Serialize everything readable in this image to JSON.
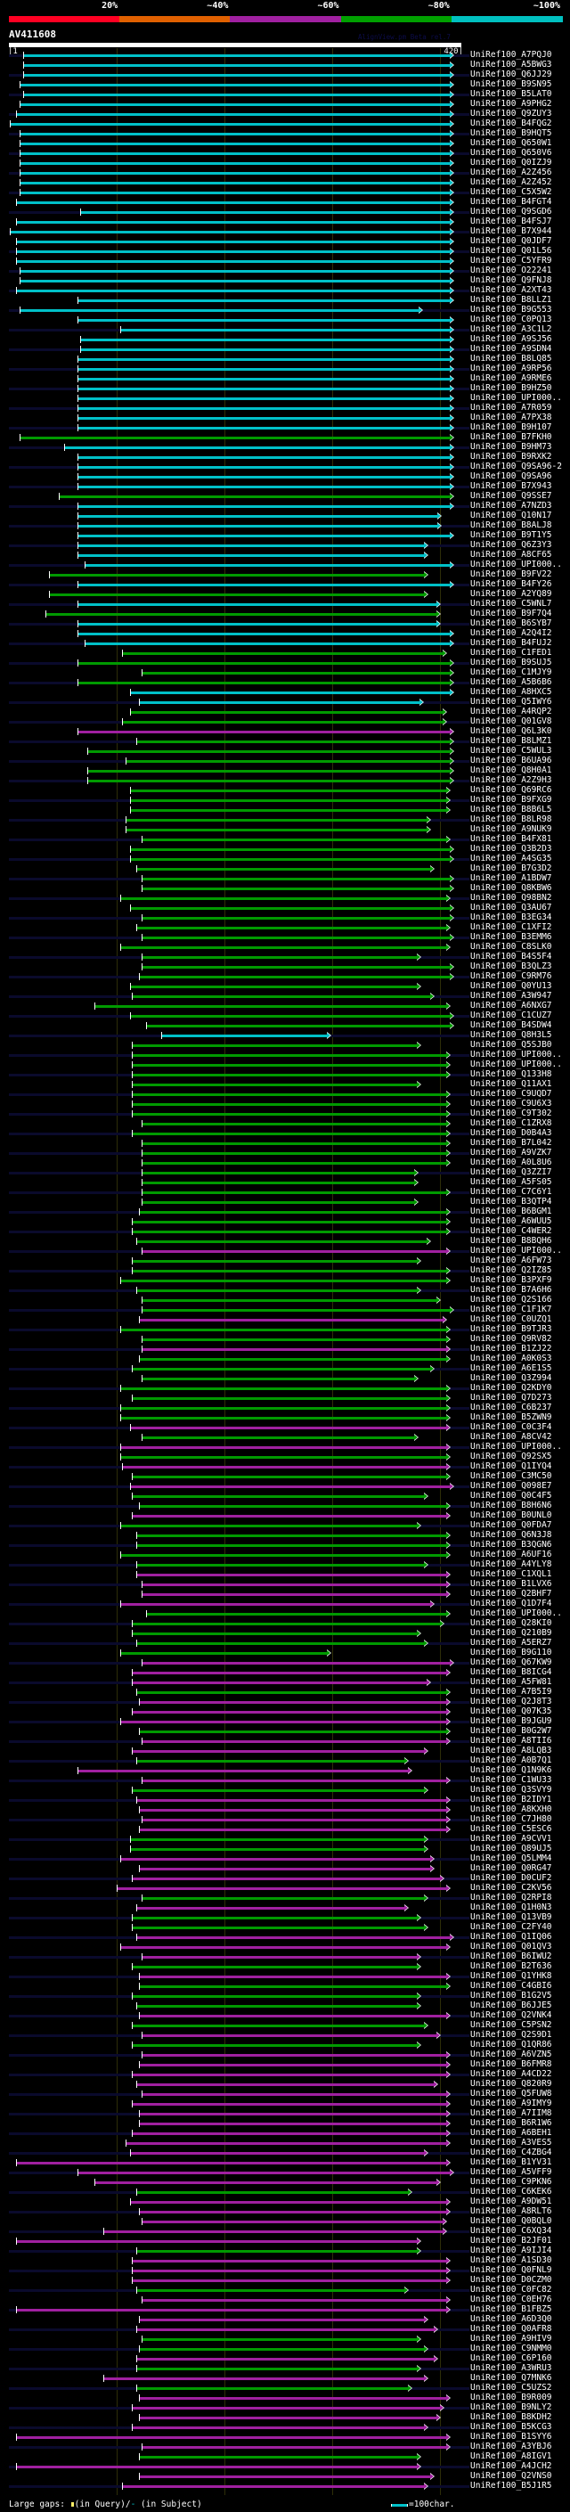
{
  "scale": {
    "labels": [
      "20%",
      "~40%",
      "~60%",
      "~80%",
      "~100%"
    ],
    "colors": [
      "#ff0022",
      "#e06000",
      "#a020a0",
      "#00a000",
      "#00c0c0"
    ]
  },
  "header": {
    "query": "AV411608",
    "version": "AlignView.pm Beta rel.7",
    "start_tick": "|1",
    "end_tick": "420|"
  },
  "query_length": 420,
  "bar_colors": {
    "c": "#00c0c8",
    "g": "#009a00",
    "m": "#a020a0"
  },
  "rows": [
    [
      "UniRef100_A7PQJ0",
      "c",
      13,
      413
    ],
    [
      "UniRef100_A5BWG3",
      "c",
      13,
      413
    ],
    [
      "UniRef100_Q6JJ29",
      "c",
      13,
      413
    ],
    [
      "UniRef100_B9SN95",
      "c",
      10,
      413
    ],
    [
      "UniRef100_B5LAT0",
      "c",
      13,
      413
    ],
    [
      "UniRef100_A9PHG2",
      "c",
      10,
      413
    ],
    [
      "UniRef100_Q9ZUY3",
      "c",
      7,
      413
    ],
    [
      "UniRef100_B4FQG2",
      "c",
      1,
      413
    ],
    [
      "UniRef100_B9HQT5",
      "c",
      10,
      413
    ],
    [
      "UniRef100_Q650W1",
      "c",
      10,
      413
    ],
    [
      "UniRef100_Q650V6",
      "c",
      10,
      413
    ],
    [
      "UniRef100_Q0IZJ9",
      "c",
      10,
      413
    ],
    [
      "UniRef100_A2Z456",
      "c",
      10,
      413
    ],
    [
      "UniRef100_A2Z452",
      "c",
      10,
      413
    ],
    [
      "UniRef100_C5X5W2",
      "c",
      10,
      413
    ],
    [
      "UniRef100_B4FGT4",
      "c",
      7,
      413
    ],
    [
      "UniRef100_Q9SGD6",
      "c",
      66,
      413
    ],
    [
      "UniRef100_B4FSJ7",
      "c",
      7,
      413
    ],
    [
      "UniRef100_B7X944",
      "c",
      1,
      413
    ],
    [
      "UniRef100_Q0JDF7",
      "c",
      7,
      413
    ],
    [
      "UniRef100_Q01L56",
      "c",
      7,
      413
    ],
    [
      "UniRef100_C5YFR9",
      "c",
      7,
      413
    ],
    [
      "UniRef100_O22241",
      "c",
      10,
      413
    ],
    [
      "UniRef100_Q9FNJ8",
      "c",
      10,
      413
    ],
    [
      "UniRef100_A2XT43",
      "c",
      7,
      413
    ],
    [
      "UniRef100_B8LLZ1",
      "c",
      64,
      413
    ],
    [
      "UniRef100_B9G553",
      "c",
      10,
      384
    ],
    [
      "UniRef100_C0PQ13",
      "c",
      64,
      413
    ],
    [
      "UniRef100_A3C1L2",
      "c",
      103,
      413
    ],
    [
      "UniRef100_A9SJ56",
      "c",
      66,
      413
    ],
    [
      "UniRef100_A9SDN4",
      "c",
      66,
      413
    ],
    [
      "UniRef100_B8LQ85",
      "c",
      64,
      413
    ],
    [
      "UniRef100_A9RP56",
      "c",
      64,
      413
    ],
    [
      "UniRef100_A9RME6",
      "c",
      64,
      413
    ],
    [
      "UniRef100_B9HZ50",
      "c",
      64,
      413
    ],
    [
      "UniRef100_UPI000..",
      "c",
      64,
      413
    ],
    [
      "UniRef100_A7R059",
      "c",
      64,
      413
    ],
    [
      "UniRef100_A7PX38",
      "c",
      64,
      413
    ],
    [
      "UniRef100_B9H107",
      "c",
      64,
      413
    ],
    [
      "UniRef100_B7FKH0",
      "g",
      10,
      413
    ],
    [
      "UniRef100_B9HM73",
      "c",
      51,
      413
    ],
    [
      "UniRef100_B9RXK2",
      "c",
      64,
      413
    ],
    [
      "UniRef100_Q9SA96-2",
      "c",
      64,
      413
    ],
    [
      "UniRef100_Q9SA96",
      "c",
      64,
      413
    ],
    [
      "UniRef100_B7X943",
      "c",
      64,
      413
    ],
    [
      "UniRef100_Q9SSE7",
      "g",
      46,
      413
    ],
    [
      "UniRef100_A7NZD3",
      "c",
      64,
      413
    ],
    [
      "UniRef100_Q10N17",
      "c",
      64,
      402
    ],
    [
      "UniRef100_B8ALJ8",
      "c",
      64,
      402
    ],
    [
      "UniRef100_B9T1Y5",
      "c",
      64,
      413
    ],
    [
      "UniRef100_Q6Z3Y3",
      "c",
      64,
      389
    ],
    [
      "UniRef100_A8CF65",
      "c",
      64,
      389
    ],
    [
      "UniRef100_UPI000..",
      "c",
      70,
      413
    ],
    [
      "UniRef100_B9FV22",
      "g",
      37,
      389
    ],
    [
      "UniRef100_B4FY26",
      "c",
      64,
      413
    ],
    [
      "UniRef100_A2YQ89",
      "g",
      37,
      389
    ],
    [
      "UniRef100_C5WNL7",
      "c",
      64,
      401
    ],
    [
      "UniRef100_B9F7Q4",
      "g",
      34,
      401
    ],
    [
      "UniRef100_B6SYB7",
      "c",
      64,
      401
    ],
    [
      "UniRef100_A2Q4I2",
      "c",
      64,
      413
    ],
    [
      "UniRef100_B4FUJ2",
      "c",
      70,
      413
    ],
    [
      "UniRef100_C1FED1",
      "g",
      105,
      407
    ],
    [
      "UniRef100_B9SUJ5",
      "g",
      64,
      413
    ],
    [
      "UniRef100_C1MJY9",
      "g",
      123,
      413
    ],
    [
      "UniRef100_A5B6B6",
      "g",
      64,
      413
    ],
    [
      "UniRef100_A8HXC5",
      "c",
      112,
      413
    ],
    [
      "UniRef100_Q5IWY6",
      "c",
      121,
      385
    ],
    [
      "UniRef100_A4RQP2",
      "g",
      112,
      407
    ],
    [
      "UniRef100_Q01GV8",
      "g",
      105,
      407
    ],
    [
      "UniRef100_Q6L3K0",
      "m",
      64,
      413
    ],
    [
      "UniRef100_B8LMZ1",
      "g",
      118,
      413
    ],
    [
      "UniRef100_C5WUL3",
      "g",
      73,
      413
    ],
    [
      "UniRef100_B6UA96",
      "g",
      108,
      413
    ],
    [
      "UniRef100_Q8H0A1",
      "g",
      73,
      413
    ],
    [
      "UniRef100_A2Z9H3",
      "g",
      73,
      413
    ],
    [
      "UniRef100_Q69RC6",
      "g",
      112,
      410
    ],
    [
      "UniRef100_B9FXG9",
      "g",
      112,
      410
    ],
    [
      "UniRef100_B8B6L5",
      "g",
      112,
      410
    ],
    [
      "UniRef100_B8LR98",
      "g",
      108,
      392
    ],
    [
      "UniRef100_A9NUK9",
      "g",
      108,
      392
    ],
    [
      "UniRef100_B4FX81",
      "g",
      123,
      410
    ],
    [
      "UniRef100_Q3B2D3",
      "g",
      112,
      413
    ],
    [
      "UniRef100_A4SG35",
      "g",
      112,
      413
    ],
    [
      "UniRef100_B7G3D2",
      "g",
      118,
      395
    ],
    [
      "UniRef100_A1BDW7",
      "g",
      123,
      413
    ],
    [
      "UniRef100_Q8KBW6",
      "g",
      123,
      413
    ],
    [
      "UniRef100_Q98BN2",
      "g",
      103,
      410
    ],
    [
      "UniRef100_Q3AU67",
      "g",
      112,
      413
    ],
    [
      "UniRef100_B3EG34",
      "g",
      123,
      413
    ],
    [
      "UniRef100_C1XFI2",
      "g",
      118,
      410
    ],
    [
      "UniRef100_B3EMM6",
      "g",
      123,
      413
    ],
    [
      "UniRef100_C8SLK0",
      "g",
      103,
      410
    ],
    [
      "UniRef100_B4S5F4",
      "g",
      123,
      383
    ],
    [
      "UniRef100_B3QLZ3",
      "g",
      123,
      413
    ],
    [
      "UniRef100_C9RM76",
      "g",
      121,
      413
    ],
    [
      "UniRef100_Q0YU13",
      "g",
      112,
      383
    ],
    [
      "UniRef100_A3W947",
      "g",
      114,
      395
    ],
    [
      "UniRef100_A6NXG7",
      "g",
      79,
      410
    ],
    [
      "UniRef100_C1CUZ7",
      "g",
      112,
      413
    ],
    [
      "UniRef100_B4SDW4",
      "g",
      127,
      413
    ],
    [
      "UniRef100_Q8H3L5",
      "c",
      141,
      299
    ],
    [
      "UniRef100_Q5SJB0",
      "g",
      114,
      383
    ],
    [
      "UniRef100_UPI000..",
      "g",
      114,
      410
    ],
    [
      "UniRef100_UPI000..",
      "g",
      114,
      410
    ],
    [
      "UniRef100_Q133H8",
      "g",
      114,
      410
    ],
    [
      "UniRef100_Q11AX1",
      "g",
      114,
      383
    ],
    [
      "UniRef100_C9UQD7",
      "g",
      114,
      410
    ],
    [
      "UniRef100_C9U6X3",
      "g",
      114,
      410
    ],
    [
      "UniRef100_C9T302",
      "g",
      114,
      410
    ],
    [
      "UniRef100_C1ZRX8",
      "g",
      123,
      410
    ],
    [
      "UniRef100_D0B4A3",
      "g",
      114,
      410
    ],
    [
      "UniRef100_B7L042",
      "g",
      123,
      410
    ],
    [
      "UniRef100_A9VZK7",
      "g",
      123,
      410
    ],
    [
      "UniRef100_A0L8U6",
      "g",
      123,
      410
    ],
    [
      "UniRef100_Q3ZZI7",
      "g",
      123,
      380
    ],
    [
      "UniRef100_A5FS05",
      "g",
      123,
      380
    ],
    [
      "UniRef100_C7C6Y1",
      "g",
      123,
      410
    ],
    [
      "UniRef100_B3QTP4",
      "g",
      123,
      380
    ],
    [
      "UniRef100_B6BGM1",
      "g",
      121,
      410
    ],
    [
      "UniRef100_A6WUU5",
      "g",
      114,
      410
    ],
    [
      "UniRef100_C4WER2",
      "g",
      114,
      410
    ],
    [
      "UniRef100_B8BQH6",
      "g",
      118,
      392
    ],
    [
      "UniRef100_UPI000..",
      "m",
      123,
      410
    ],
    [
      "UniRef100_A6FW73",
      "g",
      114,
      383
    ],
    [
      "UniRef100_Q2IZ85",
      "g",
      114,
      410
    ],
    [
      "UniRef100_B3PXF9",
      "g",
      103,
      410
    ],
    [
      "UniRef100_B7A6H6",
      "g",
      118,
      383
    ],
    [
      "UniRef100_Q2S166",
      "g",
      123,
      401
    ],
    [
      "UniRef100_C1F1K7",
      "g",
      123,
      413
    ],
    [
      "UniRef100_C0UZQ1",
      "m",
      121,
      407
    ],
    [
      "UniRef100_B9TJR3",
      "g",
      103,
      410
    ],
    [
      "UniRef100_Q9RV82",
      "g",
      123,
      410
    ],
    [
      "UniRef100_B1ZJ22",
      "m",
      123,
      410
    ],
    [
      "UniRef100_A0K0S3",
      "g",
      121,
      410
    ],
    [
      "UniRef100_A6E1S5",
      "g",
      114,
      395
    ],
    [
      "UniRef100_Q3Z994",
      "g",
      123,
      380
    ],
    [
      "UniRef100_Q2KDY0",
      "g",
      103,
      410
    ],
    [
      "UniRef100_Q7D273",
      "g",
      114,
      410
    ],
    [
      "UniRef100_C6B237",
      "g",
      103,
      410
    ],
    [
      "UniRef100_B5ZWN9",
      "g",
      103,
      410
    ],
    [
      "UniRef100_C0C3F4",
      "m",
      112,
      410
    ],
    [
      "UniRef100_A8CV42",
      "g",
      123,
      380
    ],
    [
      "UniRef100_UPI000..",
      "m",
      103,
      410
    ],
    [
      "UniRef100_Q92SX5",
      "g",
      103,
      410
    ],
    [
      "UniRef100_Q1IYQ4",
      "m",
      105,
      410
    ],
    [
      "UniRef100_C3MC50",
      "g",
      114,
      410
    ],
    [
      "UniRef100_Q098E7",
      "m",
      112,
      413
    ],
    [
      "UniRef100_Q0C4F5",
      "g",
      114,
      389
    ],
    [
      "UniRef100_B8H6N6",
      "g",
      121,
      410
    ],
    [
      "UniRef100_B0UNL0",
      "m",
      114,
      410
    ],
    [
      "UniRef100_Q0FDA7",
      "g",
      103,
      383
    ],
    [
      "UniRef100_Q6N3J8",
      "g",
      118,
      410
    ],
    [
      "UniRef100_B3QGN6",
      "g",
      118,
      410
    ],
    [
      "UniRef100_A6UF16",
      "g",
      103,
      410
    ],
    [
      "UniRef100_A4YLY8",
      "g",
      118,
      389
    ],
    [
      "UniRef100_C1XQL1",
      "m",
      118,
      410
    ],
    [
      "UniRef100_B1LVX6",
      "m",
      123,
      410
    ],
    [
      "UniRef100_Q2BHF7",
      "m",
      123,
      410
    ],
    [
      "UniRef100_Q1D7F4",
      "m",
      103,
      395
    ],
    [
      "UniRef100_UPI000..",
      "g",
      127,
      410
    ],
    [
      "UniRef100_Q28KI0",
      "g",
      114,
      404
    ],
    [
      "UniRef100_Q210B9",
      "g",
      114,
      383
    ],
    [
      "UniRef100_A5ERZ7",
      "g",
      118,
      389
    ],
    [
      "UniRef100_B9G110",
      "g",
      103,
      299
    ],
    [
      "UniRef100_Q67KW9",
      "m",
      123,
      413
    ],
    [
      "UniRef100_B8ICG4",
      "m",
      114,
      410
    ],
    [
      "UniRef100_A5FW81",
      "m",
      114,
      392
    ],
    [
      "UniRef100_A7B5I9",
      "g",
      118,
      410
    ],
    [
      "UniRef100_Q2J8T3",
      "m",
      121,
      410
    ],
    [
      "UniRef100_Q07K35",
      "m",
      114,
      410
    ],
    [
      "UniRef100_B9JGU9",
      "m",
      103,
      410
    ],
    [
      "UniRef100_B0G2W7",
      "g",
      121,
      410
    ],
    [
      "UniRef100_A8TII6",
      "m",
      123,
      410
    ],
    [
      "UniRef100_A8LQB3",
      "m",
      114,
      389
    ],
    [
      "UniRef100_A0B7Q1",
      "g",
      118,
      371
    ],
    [
      "UniRef100_Q1N9K6",
      "m",
      64,
      374
    ],
    [
      "UniRef100_C1WU33",
      "m",
      123,
      410
    ],
    [
      "UniRef100_Q3SVY9",
      "g",
      114,
      389
    ],
    [
      "UniRef100_B2IDY1",
      "m",
      118,
      410
    ],
    [
      "UniRef100_A8KXH0",
      "m",
      121,
      410
    ],
    [
      "UniRef100_C7JH80",
      "m",
      123,
      410
    ],
    [
      "UniRef100_C5ESC6",
      "m",
      121,
      410
    ],
    [
      "UniRef100_A9CVV1",
      "g",
      112,
      389
    ],
    [
      "UniRef100_Q89UJ5",
      "g",
      112,
      389
    ],
    [
      "UniRef100_Q5LMM4",
      "m",
      103,
      395
    ],
    [
      "UniRef100_Q0RG47",
      "m",
      121,
      395
    ],
    [
      "UniRef100_D0CUF2",
      "m",
      114,
      404
    ],
    [
      "UniRef100_C2KV56",
      "m",
      100,
      410
    ],
    [
      "UniRef100_Q2RPI8",
      "g",
      123,
      389
    ],
    [
      "UniRef100_Q1H0N3",
      "m",
      118,
      371
    ],
    [
      "UniRef100_Q13VB9",
      "g",
      114,
      383
    ],
    [
      "UniRef100_C2FY40",
      "g",
      114,
      389
    ],
    [
      "UniRef100_Q1IQ06",
      "m",
      118,
      413
    ],
    [
      "UniRef100_Q01QV3",
      "m",
      103,
      410
    ],
    [
      "UniRef100_B6IWU2",
      "m",
      123,
      383
    ],
    [
      "UniRef100_B2T636",
      "g",
      114,
      383
    ],
    [
      "UniRef100_Q1YHK8",
      "m",
      121,
      410
    ],
    [
      "UniRef100_C4GBI6",
      "g",
      121,
      410
    ],
    [
      "UniRef100_B1G2V5",
      "g",
      114,
      383
    ],
    [
      "UniRef100_B6JJE5",
      "g",
      118,
      383
    ],
    [
      "UniRef100_Q2VNK4",
      "m",
      121,
      410
    ],
    [
      "UniRef100_C5PSN2",
      "g",
      114,
      389
    ],
    [
      "UniRef100_Q2S9D1",
      "m",
      123,
      401
    ],
    [
      "UniRef100_Q1QR86",
      "g",
      114,
      383
    ],
    [
      "UniRef100_A6VZN5",
      "m",
      123,
      410
    ],
    [
      "UniRef100_B6FMR8",
      "m",
      121,
      410
    ],
    [
      "UniRef100_A4CD22",
      "m",
      114,
      410
    ],
    [
      "UniRef100_Q820R9",
      "m",
      118,
      398
    ],
    [
      "UniRef100_Q5FUW8",
      "m",
      123,
      410
    ],
    [
      "UniRef100_A9IMY9",
      "m",
      114,
      410
    ],
    [
      "UniRef100_A7IIM8",
      "m",
      121,
      410
    ],
    [
      "UniRef100_B6R1W6",
      "m",
      121,
      410
    ],
    [
      "UniRef100_A6BEH1",
      "m",
      114,
      410
    ],
    [
      "UniRef100_A3VES5",
      "m",
      108,
      410
    ],
    [
      "UniRef100_C4ZBG4",
      "m",
      112,
      389
    ],
    [
      "UniRef100_B1YV31",
      "m",
      7,
      410
    ],
    [
      "UniRef100_A5VFF9",
      "m",
      64,
      413
    ],
    [
      "UniRef100_C9PKN6",
      "m",
      79,
      401
    ],
    [
      "UniRef100_C6KEK6",
      "g",
      118,
      374
    ],
    [
      "UniRef100_A9DW51",
      "m",
      112,
      410
    ],
    [
      "UniRef100_A8RLT6",
      "m",
      121,
      410
    ],
    [
      "UniRef100_Q0BQL0",
      "m",
      123,
      407
    ],
    [
      "UniRef100_C6XQ34",
      "m",
      88,
      407
    ],
    [
      "UniRef100_B2JF01",
      "m",
      7,
      383
    ],
    [
      "UniRef100_A9IJI4",
      "g",
      118,
      383
    ],
    [
      "UniRef100_A1SD30",
      "m",
      114,
      410
    ],
    [
      "UniRef100_Q0FNL9",
      "m",
      114,
      410
    ],
    [
      "UniRef100_D0CZM0",
      "m",
      114,
      410
    ],
    [
      "UniRef100_C0FC82",
      "g",
      118,
      371
    ],
    [
      "UniRef100_C0EH76",
      "m",
      123,
      410
    ],
    [
      "UniRef100_B1FBZ5",
      "m",
      7,
      410
    ],
    [
      "UniRef100_A6D3Q0",
      "m",
      121,
      389
    ],
    [
      "UniRef100_Q0AFR8",
      "m",
      118,
      398
    ],
    [
      "UniRef100_A9HIV9",
      "g",
      123,
      383
    ],
    [
      "UniRef100_C9NMM0",
      "g",
      121,
      389
    ],
    [
      "UniRef100_C6P160",
      "m",
      118,
      398
    ],
    [
      "UniRef100_A3WRU3",
      "g",
      118,
      383
    ],
    [
      "UniRef100_Q7MNK6",
      "m",
      88,
      389
    ],
    [
      "UniRef100_C5UZS2",
      "g",
      118,
      374
    ],
    [
      "UniRef100_B9R009",
      "m",
      121,
      410
    ],
    [
      "UniRef100_B9NLY2",
      "m",
      114,
      404
    ],
    [
      "UniRef100_B8KDH2",
      "m",
      121,
      401
    ],
    [
      "UniRef100_B5KCG3",
      "m",
      114,
      389
    ],
    [
      "UniRef100_B1SYY6",
      "m",
      7,
      410
    ],
    [
      "UniRef100_A3YBJ6",
      "m",
      123,
      410
    ],
    [
      "UniRef100_A8IGV1",
      "g",
      121,
      383
    ],
    [
      "UniRef100_A4JCH2",
      "m",
      7,
      383
    ],
    [
      "UniRef100_Q2VNS0",
      "m",
      121,
      395
    ],
    [
      "UniRef100_B5J1R5",
      "m",
      105,
      389
    ]
  ],
  "footer": {
    "large_gaps": "Large gaps:",
    "in_query": "(in Query)/",
    "subject_mark": "-",
    "in_subject": " (in Subject)",
    "scale_legend": "=100char."
  }
}
